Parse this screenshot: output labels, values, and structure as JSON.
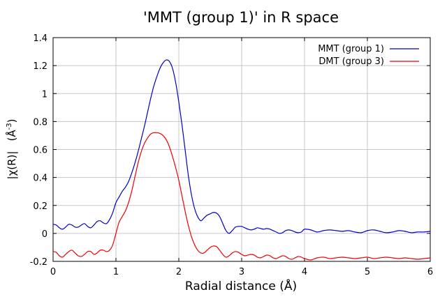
{
  "chart_data": {
    "type": "line",
    "title": "'MMT (group 1)' in R space",
    "xlabel": "Radial distance    (Å)",
    "ylabel_main": "|χ(R)|",
    "ylabel_unit": "(Å",
    "ylabel_exp": "-3",
    "ylabel_close": ")",
    "xlim": [
      0,
      6
    ],
    "ylim": [
      -0.2,
      1.4
    ],
    "xticks": [
      0,
      1,
      2,
      3,
      4,
      5,
      6
    ],
    "yticks": [
      -0.2,
      0,
      0.2,
      0.4,
      0.6,
      0.8,
      1,
      1.2,
      1.4
    ],
    "xtick_labels": [
      "0",
      "1",
      "2",
      "3",
      "4",
      "5",
      "6"
    ],
    "ytick_labels": [
      "-0.2",
      "0",
      "0.2",
      "0.4",
      "0.6",
      "0.8",
      "1",
      "1.2",
      "1.4"
    ],
    "grid": true,
    "legend_position": "top-right",
    "series": [
      {
        "name": "MMT (group 1)",
        "color": "#0000cc",
        "x": [
          0,
          0.05,
          0.1,
          0.15,
          0.2,
          0.25,
          0.3,
          0.35,
          0.4,
          0.45,
          0.5,
          0.55,
          0.6,
          0.65,
          0.7,
          0.75,
          0.8,
          0.85,
          0.9,
          0.95,
          1.0,
          1.05,
          1.1,
          1.15,
          1.2,
          1.25,
          1.3,
          1.35,
          1.4,
          1.45,
          1.5,
          1.55,
          1.6,
          1.65,
          1.7,
          1.75,
          1.8,
          1.85,
          1.9,
          1.95,
          2.0,
          2.05,
          2.1,
          2.15,
          2.2,
          2.25,
          2.3,
          2.35,
          2.4,
          2.45,
          2.5,
          2.55,
          2.6,
          2.65,
          2.7,
          2.75,
          2.8,
          2.85,
          2.9,
          2.95,
          3.0,
          3.05,
          3.1,
          3.15,
          3.2,
          3.25,
          3.3,
          3.35,
          3.4,
          3.45,
          3.5,
          3.55,
          3.6,
          3.65,
          3.7,
          3.75,
          3.8,
          3.85,
          3.9,
          3.95,
          4.0,
          4.1,
          4.2,
          4.3,
          4.4,
          4.5,
          4.6,
          4.7,
          4.8,
          4.9,
          5.0,
          5.1,
          5.2,
          5.3,
          5.4,
          5.5,
          5.6,
          5.7,
          5.8,
          5.9,
          6.0
        ],
        "y": [
          0.065,
          0.06,
          0.04,
          0.03,
          0.045,
          0.065,
          0.06,
          0.045,
          0.045,
          0.06,
          0.07,
          0.05,
          0.04,
          0.06,
          0.085,
          0.09,
          0.075,
          0.07,
          0.1,
          0.15,
          0.22,
          0.26,
          0.3,
          0.33,
          0.37,
          0.43,
          0.5,
          0.58,
          0.67,
          0.76,
          0.86,
          0.96,
          1.05,
          1.12,
          1.18,
          1.22,
          1.24,
          1.23,
          1.18,
          1.08,
          0.94,
          0.78,
          0.6,
          0.42,
          0.28,
          0.18,
          0.12,
          0.09,
          0.11,
          0.13,
          0.14,
          0.15,
          0.145,
          0.12,
          0.07,
          0.02,
          0.0,
          0.02,
          0.045,
          0.05,
          0.05,
          0.04,
          0.03,
          0.025,
          0.03,
          0.04,
          0.035,
          0.03,
          0.035,
          0.03,
          0.02,
          0.01,
          0.0,
          0.005,
          0.02,
          0.025,
          0.02,
          0.01,
          0.005,
          0.01,
          0.03,
          0.025,
          0.01,
          0.02,
          0.025,
          0.02,
          0.015,
          0.02,
          0.01,
          0.005,
          0.02,
          0.025,
          0.015,
          0.005,
          0.01,
          0.02,
          0.015,
          0.005,
          0.01,
          0.01,
          0.015
        ]
      },
      {
        "name": "DMT (group 3)",
        "color": "#ee0000",
        "x": [
          0,
          0.05,
          0.1,
          0.15,
          0.2,
          0.25,
          0.3,
          0.35,
          0.4,
          0.45,
          0.5,
          0.55,
          0.6,
          0.65,
          0.7,
          0.75,
          0.8,
          0.85,
          0.9,
          0.95,
          1.0,
          1.05,
          1.1,
          1.15,
          1.2,
          1.25,
          1.3,
          1.35,
          1.4,
          1.45,
          1.5,
          1.55,
          1.6,
          1.65,
          1.7,
          1.75,
          1.8,
          1.85,
          1.9,
          1.95,
          2.0,
          2.05,
          2.1,
          2.15,
          2.2,
          2.25,
          2.3,
          2.35,
          2.4,
          2.45,
          2.5,
          2.55,
          2.6,
          2.65,
          2.7,
          2.75,
          2.8,
          2.85,
          2.9,
          2.95,
          3.0,
          3.05,
          3.1,
          3.15,
          3.2,
          3.25,
          3.3,
          3.35,
          3.4,
          3.45,
          3.5,
          3.55,
          3.6,
          3.65,
          3.7,
          3.75,
          3.8,
          3.85,
          3.9,
          3.95,
          4.0,
          4.1,
          4.2,
          4.3,
          4.4,
          4.5,
          4.6,
          4.7,
          4.8,
          4.9,
          5.0,
          5.1,
          5.2,
          5.3,
          5.4,
          5.5,
          5.6,
          5.7,
          5.8,
          5.9,
          6.0
        ],
        "y": [
          -0.13,
          -0.135,
          -0.16,
          -0.17,
          -0.15,
          -0.13,
          -0.12,
          -0.14,
          -0.16,
          -0.165,
          -0.15,
          -0.13,
          -0.13,
          -0.15,
          -0.14,
          -0.12,
          -0.12,
          -0.13,
          -0.12,
          -0.08,
          0.0,
          0.08,
          0.12,
          0.16,
          0.22,
          0.3,
          0.4,
          0.5,
          0.58,
          0.64,
          0.68,
          0.71,
          0.72,
          0.72,
          0.715,
          0.7,
          0.67,
          0.62,
          0.55,
          0.47,
          0.38,
          0.27,
          0.16,
          0.06,
          -0.02,
          -0.08,
          -0.12,
          -0.14,
          -0.14,
          -0.12,
          -0.1,
          -0.09,
          -0.095,
          -0.12,
          -0.15,
          -0.17,
          -0.16,
          -0.14,
          -0.13,
          -0.135,
          -0.15,
          -0.16,
          -0.155,
          -0.15,
          -0.155,
          -0.17,
          -0.175,
          -0.165,
          -0.155,
          -0.16,
          -0.175,
          -0.18,
          -0.17,
          -0.16,
          -0.165,
          -0.18,
          -0.185,
          -0.175,
          -0.165,
          -0.17,
          -0.18,
          -0.19,
          -0.175,
          -0.17,
          -0.18,
          -0.175,
          -0.17,
          -0.175,
          -0.18,
          -0.175,
          -0.17,
          -0.18,
          -0.175,
          -0.17,
          -0.175,
          -0.18,
          -0.175,
          -0.18,
          -0.185,
          -0.18,
          -0.175
        ]
      }
    ]
  }
}
